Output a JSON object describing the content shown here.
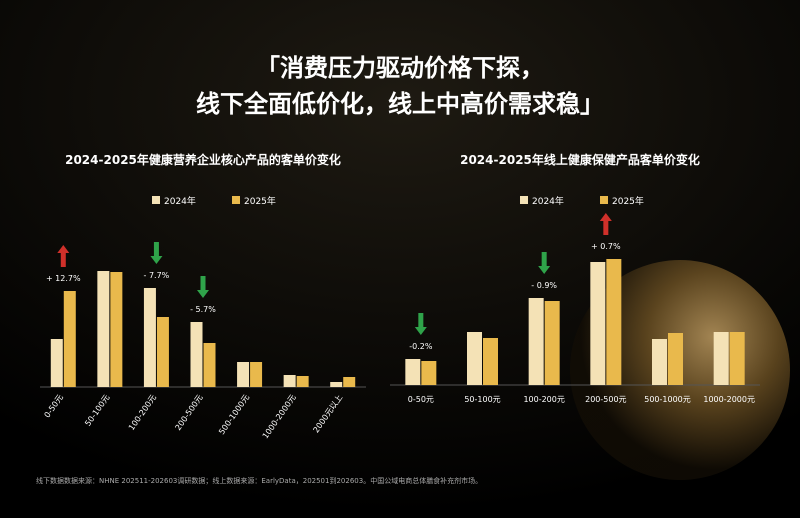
{
  "headline": {
    "line1": "「消费压力驱动价格下探，",
    "line2": "线下全面低价化，线上中高价需求稳」"
  },
  "footnote": "线下数据数据来源：NHNE 202511-202603调研数据；线上数据来源：EarlyData，202501到202603。中国公域电商总体膳食补充剂市场。",
  "chart_data": [
    {
      "type": "bar",
      "title": "2024-2025年健康营养企业核心产品的客单价变化",
      "categories": [
        "0-50元",
        "50-100元",
        "100-200元",
        "200-500元",
        "500-1000元",
        "1000-2000元",
        "2000元以上"
      ],
      "series": [
        {
          "name": "2024年",
          "color": "#f4e2b6",
          "values": [
            48,
            116,
            99,
            65,
            25,
            12,
            5
          ]
        },
        {
          "name": "2025年",
          "color": "#e9b94c",
          "values": [
            96,
            115,
            70,
            44,
            25,
            11,
            10
          ]
        }
      ],
      "change_labels": [
        "+ 12.7%",
        null,
        "- 7.7%",
        "- 5.7%",
        null,
        null,
        null
      ],
      "change_direction": [
        "up",
        null,
        "down",
        "down",
        null,
        null,
        null
      ],
      "ylim": [
        0,
        130
      ],
      "rotate_categories": true
    },
    {
      "type": "bar",
      "title": "2024-2025年线上健康保健产品客单价变化",
      "categories": [
        "0-50元",
        "50-100元",
        "100-200元",
        "200-500元",
        "500-1000元",
        "1000-2000元"
      ],
      "series": [
        {
          "name": "2024年",
          "color": "#f4e2b6",
          "values": [
            26,
            53,
            87,
            123,
            46,
            53
          ]
        },
        {
          "name": "2025年",
          "color": "#e9b94c",
          "values": [
            24,
            47,
            84,
            126,
            52,
            53
          ]
        }
      ],
      "change_labels": [
        "-0.2%",
        null,
        "- 0.9%",
        "+ 0.7%",
        null,
        null
      ],
      "change_direction": [
        "down",
        null,
        "down",
        "up",
        null,
        null
      ],
      "ylim": [
        0,
        130
      ],
      "rotate_categories": false
    }
  ]
}
